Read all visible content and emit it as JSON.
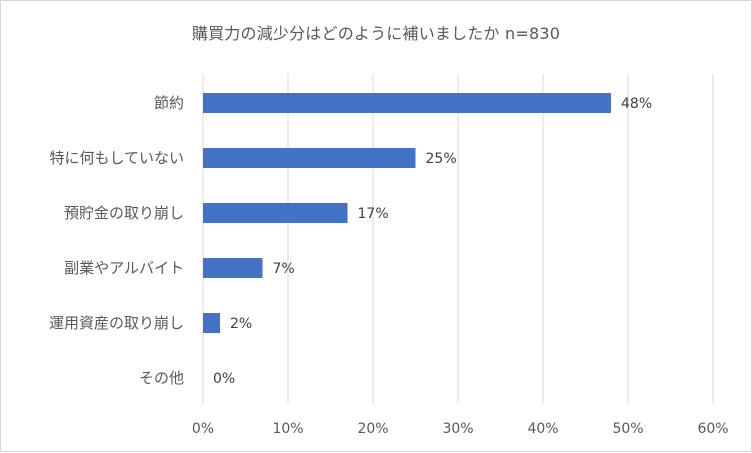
{
  "chart_data": {
    "type": "bar",
    "orientation": "horizontal",
    "title": "購買力の減少分はどのように補いましたか n=830",
    "categories": [
      "節約",
      "特に何もしていない",
      "預貯金の取り崩し",
      "副業やアルバイト",
      "運用資産の取り崩し",
      "その他"
    ],
    "values": [
      48,
      25,
      17,
      7,
      2,
      0
    ],
    "data_labels": [
      "48%",
      "25%",
      "17%",
      "7%",
      "2%",
      "0%"
    ],
    "x_ticks": [
      "0%",
      "10%",
      "20%",
      "30%",
      "40%",
      "50%",
      "60%"
    ],
    "xlim": [
      0,
      60
    ],
    "grid": true,
    "bar_color": "#4472c4"
  }
}
